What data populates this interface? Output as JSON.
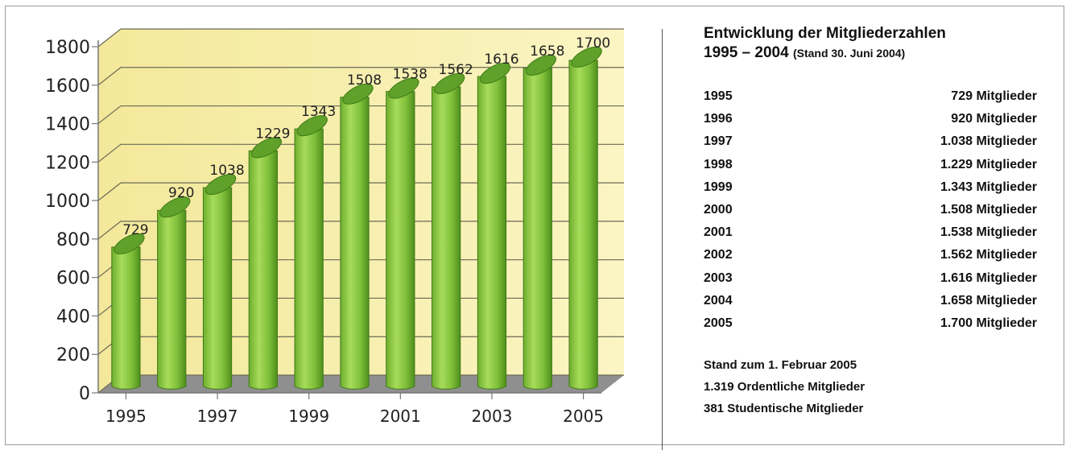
{
  "chart_data": {
    "type": "bar",
    "categories": [
      "1995",
      "1996",
      "1997",
      "1998",
      "1999",
      "2000",
      "2001",
      "2002",
      "2003",
      "2004",
      "2005"
    ],
    "values": [
      729,
      920,
      1038,
      1229,
      1343,
      1508,
      1538,
      1562,
      1616,
      1658,
      1700
    ],
    "data_labels": [
      "729",
      "920",
      "1038",
      "1229",
      "1343",
      "1508",
      "1538",
      "1562",
      "1616",
      "1658",
      "1700"
    ],
    "x_tick_labels": [
      "1995",
      "1997",
      "1999",
      "2001",
      "2003",
      "2005"
    ],
    "y_tick_labels": [
      "0",
      "200",
      "400",
      "600",
      "800",
      "1000",
      "1200",
      "1400",
      "1600",
      "1800"
    ],
    "ylim": [
      0,
      1800
    ],
    "grid": true,
    "legend": "none",
    "style": "3d-cylinder",
    "colors": {
      "bar": "#8cc63f",
      "bar_dark": "#4e8f1c",
      "bar_top": "#5fa12a",
      "plot_background": "#f8f0a8",
      "floor": "#8f8f8f"
    }
  },
  "panel": {
    "title_line1": "Entwicklung der Mitgliederzahlen",
    "title_line2": "1995 – 2004",
    "title_sub": "(Stand 30. Juni 2004)",
    "rows": [
      {
        "year": "1995",
        "count": "729 Mitglieder"
      },
      {
        "year": "1996",
        "count": "920 Mitglieder"
      },
      {
        "year": "1997",
        "count": "1.038 Mitglieder"
      },
      {
        "year": "1998",
        "count": "1.229 Mitglieder"
      },
      {
        "year": "1999",
        "count": "1.343 Mitglieder"
      },
      {
        "year": "2000",
        "count": "1.508 Mitglieder"
      },
      {
        "year": "2001",
        "count": "1.538 Mitglieder"
      },
      {
        "year": "2002",
        "count": "1.562 Mitglieder"
      },
      {
        "year": "2003",
        "count": "1.616 Mitglieder"
      },
      {
        "year": "2004",
        "count": "1.658 Mitglieder"
      },
      {
        "year": "2005",
        "count": "1.700 Mitglieder"
      }
    ],
    "footer": {
      "line1": "Stand zum 1. Februar 2005",
      "line2": "1.319 Ordentliche Mitglieder",
      "line3": "381 Studentische Mitglieder"
    }
  }
}
